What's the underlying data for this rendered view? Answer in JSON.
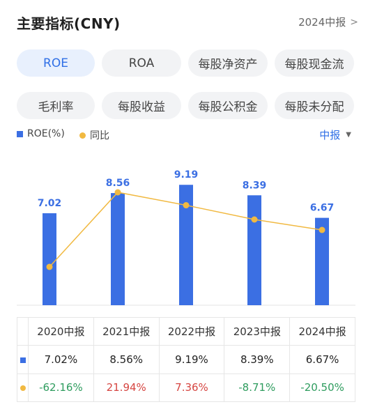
{
  "header": {
    "title": "主要指标(CNY)",
    "period_label": "2024中报",
    "period_chevron": ">"
  },
  "tabs": [
    {
      "label": "ROE",
      "active": true
    },
    {
      "label": "ROA",
      "active": false
    },
    {
      "label": "每股净资产",
      "active": false
    },
    {
      "label": "每股现金流",
      "active": false
    },
    {
      "label": "毛利率",
      "active": false
    },
    {
      "label": "每股收益",
      "active": false
    },
    {
      "label": "每股公积金",
      "active": false
    },
    {
      "label": "每股未分配",
      "active": false
    }
  ],
  "legend": {
    "bar_label": "ROE(%)",
    "line_label": "同比",
    "period_select": "中报",
    "caret": "▼"
  },
  "colors": {
    "bar": "#3b6fe3",
    "line": "#f1b941",
    "positive": "#d64541",
    "negative": "#2e9c5e",
    "active_tab": "#2f6fe6"
  },
  "chart_data": {
    "type": "bar",
    "categories": [
      "2020中报",
      "2021中报",
      "2022中报",
      "2023中报",
      "2024中报"
    ],
    "series": [
      {
        "name": "ROE(%)",
        "type": "bar",
        "values": [
          7.02,
          8.56,
          9.19,
          8.39,
          6.67
        ]
      },
      {
        "name": "同比",
        "type": "line",
        "values": [
          -62.16,
          21.94,
          7.36,
          -8.71,
          -20.5
        ]
      }
    ],
    "title": "",
    "xlabel": "",
    "ylabel": ""
  },
  "table": {
    "headers": [
      "2020中报",
      "2021中报",
      "2022中报",
      "2023中报",
      "2024中报"
    ],
    "rows": [
      {
        "marker": "bar",
        "values": [
          "7.02%",
          "8.56%",
          "9.19%",
          "8.39%",
          "6.67%"
        ],
        "tones": [
          "plain",
          "plain",
          "plain",
          "plain",
          "plain"
        ]
      },
      {
        "marker": "dot",
        "values": [
          "-62.16%",
          "21.94%",
          "7.36%",
          "-8.71%",
          "-20.50%"
        ],
        "tones": [
          "neg",
          "pos",
          "pos",
          "neg",
          "neg"
        ]
      }
    ]
  }
}
